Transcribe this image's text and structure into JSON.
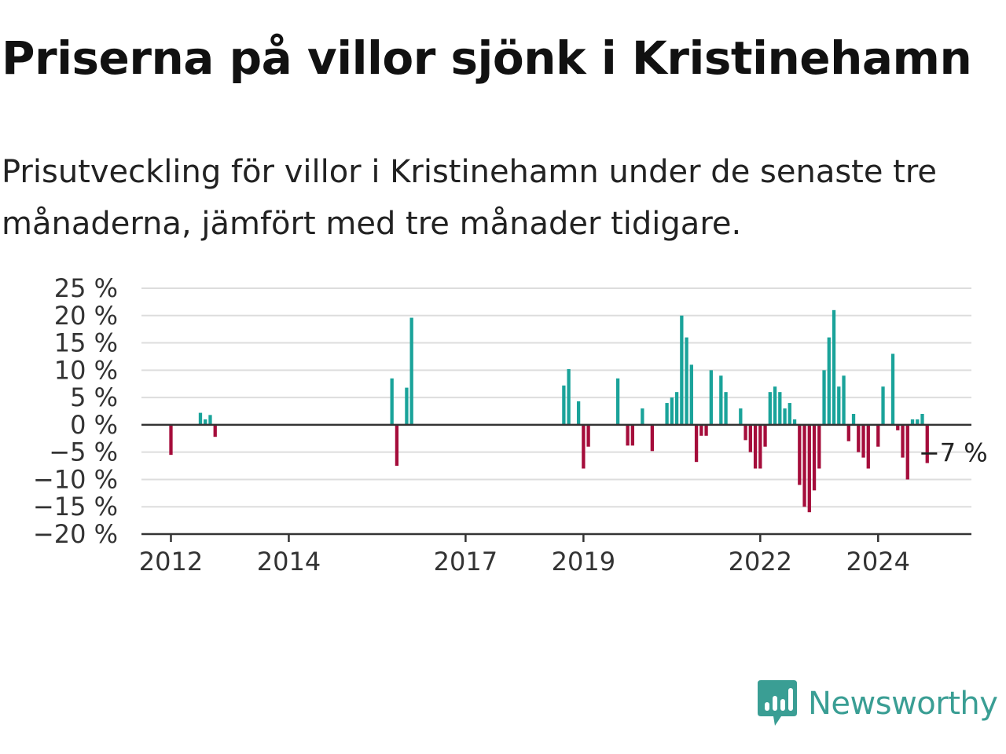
{
  "title": "Priserna på villor sjönk i Kristinehamn",
  "subtitle": "Prisutveckling för villor i Kristinehamn under de senaste tre månaderna, jämfört med tre månader tidigare.",
  "logo": {
    "text": "Newsworthy",
    "icon": "newsworthy-logo-icon"
  },
  "colors": {
    "positive": "#1aa39a",
    "negative": "#a50d3b",
    "logo": "#3a9e94"
  },
  "chart_data": {
    "type": "bar",
    "title": "Priserna på villor sjönk i Kristinehamn",
    "xlabel": "",
    "ylabel": "",
    "ylim": [
      -20,
      25
    ],
    "xlim": [
      "2011-07",
      "2025-08"
    ],
    "y_ticks": [
      "25 %",
      "20 %",
      "15 %",
      "10 %",
      "5 %",
      "0 %",
      "−5 %",
      "−10 %",
      "−15 %",
      "−20 %"
    ],
    "y_tick_values": [
      25,
      20,
      15,
      10,
      5,
      0,
      -5,
      -10,
      -15,
      -20
    ],
    "x_ticks": [
      "2012",
      "2014",
      "2017",
      "2019",
      "2022",
      "2024"
    ],
    "x_tick_dates": [
      "2012-01",
      "2014-01",
      "2017-01",
      "2019-01",
      "2022-01",
      "2024-01"
    ],
    "grid": true,
    "annotation": {
      "text": "−7 %",
      "date": "2025-03",
      "value": -7
    },
    "series": [
      {
        "points": [
          [
            "2012-01",
            -5.5
          ],
          [
            "2012-07",
            2.2
          ],
          [
            "2012-08",
            1.0
          ],
          [
            "2012-09",
            1.8
          ],
          [
            "2012-10",
            -2.2
          ],
          [
            "2015-10",
            8.5
          ],
          [
            "2015-11",
            -7.5
          ],
          [
            "2016-01",
            6.8
          ],
          [
            "2016-02",
            19.6
          ],
          [
            "2018-09",
            7.2
          ],
          [
            "2018-10",
            10.2
          ],
          [
            "2018-12",
            4.3
          ],
          [
            "2019-01",
            -8.0
          ],
          [
            "2019-02",
            -4.0
          ],
          [
            "2019-08",
            8.5
          ],
          [
            "2019-10",
            -3.8
          ],
          [
            "2019-11",
            -3.8
          ],
          [
            "2020-01",
            3.0
          ],
          [
            "2020-03",
            -4.8
          ],
          [
            "2020-06",
            4.0
          ],
          [
            "2020-07",
            5.0
          ],
          [
            "2020-08",
            6.0
          ],
          [
            "2020-09",
            20.0
          ],
          [
            "2020-10",
            16.0
          ],
          [
            "2020-11",
            11.0
          ],
          [
            "2020-12",
            -6.8
          ],
          [
            "2021-01",
            -2.0
          ],
          [
            "2021-02",
            -2.0
          ],
          [
            "2021-03",
            10.0
          ],
          [
            "2021-05",
            9.0
          ],
          [
            "2021-06",
            6.0
          ],
          [
            "2021-09",
            3.0
          ],
          [
            "2021-10",
            -2.8
          ],
          [
            "2021-11",
            -5.0
          ],
          [
            "2021-12",
            -8.0
          ],
          [
            "2022-01",
            -8.0
          ],
          [
            "2022-02",
            -4.0
          ],
          [
            "2022-03",
            6.0
          ],
          [
            "2022-04",
            7.0
          ],
          [
            "2022-05",
            6.0
          ],
          [
            "2022-06",
            3.0
          ],
          [
            "2022-07",
            4.0
          ],
          [
            "2022-08",
            1.0
          ],
          [
            "2022-09",
            -11.0
          ],
          [
            "2022-10",
            -15.0
          ],
          [
            "2022-11",
            -16.0
          ],
          [
            "2022-12",
            -12.0
          ],
          [
            "2023-01",
            -8.0
          ],
          [
            "2023-02",
            10.0
          ],
          [
            "2023-03",
            16.0
          ],
          [
            "2023-04",
            21.0
          ],
          [
            "2023-05",
            7.0
          ],
          [
            "2023-06",
            9.0
          ],
          [
            "2023-07",
            -3.0
          ],
          [
            "2023-08",
            2.0
          ],
          [
            "2023-09",
            -5.0
          ],
          [
            "2023-10",
            -6.0
          ],
          [
            "2023-11",
            -8.0
          ],
          [
            "2024-01",
            -4.0
          ],
          [
            "2024-02",
            7.0
          ],
          [
            "2024-04",
            13.0
          ],
          [
            "2024-05",
            -1.0
          ],
          [
            "2024-06",
            -6.0
          ],
          [
            "2024-07",
            -10.0
          ],
          [
            "2024-08",
            1.0
          ],
          [
            "2024-09",
            1.0
          ],
          [
            "2024-10",
            2.0
          ],
          [
            "2024-11",
            -7.0
          ]
        ]
      }
    ]
  }
}
